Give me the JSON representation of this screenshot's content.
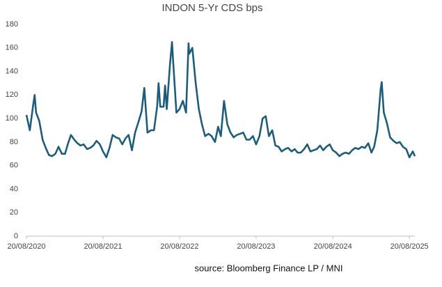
{
  "chart_data": {
    "type": "line",
    "title": "INDON 5-Yr CDS bps",
    "source": "source: Bloomberg Finance LP / MNI",
    "color": "#1d5c7a",
    "x": [
      "20/08/2020",
      "05/09/2020",
      "20/09/2020",
      "28/09/2020",
      "05/10/2020",
      "20/10/2020",
      "05/11/2020",
      "20/11/2020",
      "05/12/2020",
      "20/12/2020",
      "05/01/2021",
      "20/01/2021",
      "05/02/2021",
      "20/02/2021",
      "05/03/2021",
      "20/03/2021",
      "05/04/2021",
      "20/04/2021",
      "05/05/2021",
      "20/05/2021",
      "05/06/2021",
      "20/06/2021",
      "05/07/2021",
      "20/07/2021",
      "05/08/2021",
      "20/08/2021",
      "05/09/2021",
      "20/09/2021",
      "05/10/2021",
      "20/10/2021",
      "05/11/2021",
      "20/11/2021",
      "05/12/2021",
      "20/12/2021",
      "05/01/2022",
      "20/01/2022",
      "05/02/2022",
      "20/02/2022",
      "05/03/2022",
      "20/03/2022",
      "05/04/2022",
      "20/04/2022",
      "05/05/2022",
      "12/05/2022",
      "20/05/2022",
      "05/06/2022",
      "12/06/2022",
      "20/06/2022",
      "05/07/2022",
      "15/07/2022",
      "20/07/2022",
      "05/08/2022",
      "20/08/2022",
      "05/09/2022",
      "20/09/2022",
      "02/10/2022",
      "05/10/2022",
      "20/10/2022",
      "05/11/2022",
      "20/11/2022",
      "05/12/2022",
      "20/12/2022",
      "05/01/2023",
      "20/01/2023",
      "05/02/2023",
      "20/02/2023",
      "05/03/2023",
      "20/03/2023",
      "05/04/2023",
      "20/04/2023",
      "05/05/2023",
      "20/05/2023",
      "05/06/2023",
      "20/06/2023",
      "05/07/2023",
      "20/07/2023",
      "05/08/2023",
      "20/08/2023",
      "05/09/2023",
      "20/09/2023",
      "05/10/2023",
      "20/10/2023",
      "05/11/2023",
      "20/11/2023",
      "05/12/2023",
      "20/12/2023",
      "05/01/2024",
      "20/01/2024",
      "05/02/2024",
      "20/02/2024",
      "05/03/2024",
      "20/03/2024",
      "05/04/2024",
      "20/04/2024",
      "05/05/2024",
      "20/05/2024",
      "05/06/2024",
      "20/06/2024",
      "05/07/2024",
      "20/07/2024",
      "05/08/2024",
      "20/08/2024",
      "05/09/2024",
      "20/09/2024",
      "05/10/2024",
      "20/10/2024",
      "05/11/2024",
      "20/11/2024",
      "05/12/2024",
      "20/12/2024",
      "05/01/2025",
      "20/01/2025",
      "05/02/2025",
      "20/02/2025",
      "05/03/2025",
      "20/03/2025",
      "05/04/2025",
      "10/04/2025",
      "20/04/2025",
      "05/05/2025",
      "20/05/2025",
      "05/06/2025",
      "20/06/2025",
      "05/07/2025",
      "20/07/2025",
      "05/08/2025",
      "20/08/2025",
      "05/09/2025",
      "15/09/2025"
    ],
    "values": [
      103,
      90,
      110,
      120,
      105,
      98,
      82,
      75,
      69,
      68,
      70,
      76,
      70,
      70,
      78,
      86,
      82,
      79,
      77,
      78,
      74,
      75,
      77,
      81,
      78,
      72,
      67,
      75,
      86,
      84,
      83,
      78,
      83,
      86,
      73,
      88,
      97,
      106,
      126,
      88,
      90,
      90,
      110,
      130,
      110,
      110,
      128,
      108,
      145,
      165,
      150,
      105,
      108,
      115,
      105,
      164,
      155,
      160,
      130,
      108,
      95,
      85,
      87,
      85,
      80,
      93,
      85,
      115,
      95,
      88,
      84,
      86,
      87,
      88,
      82,
      82,
      85,
      78,
      85,
      100,
      102,
      85,
      90,
      77,
      76,
      72,
      74,
      75,
      72,
      74,
      71,
      71,
      74,
      78,
      72,
      73,
      74,
      77,
      73,
      76,
      78,
      73,
      71,
      68,
      70,
      71,
      70,
      73,
      75,
      74,
      76,
      75,
      79,
      71,
      76,
      90,
      125,
      131,
      105,
      96,
      84,
      81,
      79,
      80,
      76,
      74,
      67,
      72,
      68
    ],
    "xlim": [
      "20/08/2020",
      "15/09/2025"
    ],
    "xticks": [
      "20/08/2020",
      "20/08/2021",
      "20/08/2022",
      "20/08/2023",
      "20/08/2024",
      "20/08/2025"
    ],
    "ylim": [
      0,
      180
    ],
    "yticks": [
      0,
      20,
      40,
      60,
      80,
      100,
      120,
      140,
      160,
      180
    ]
  }
}
